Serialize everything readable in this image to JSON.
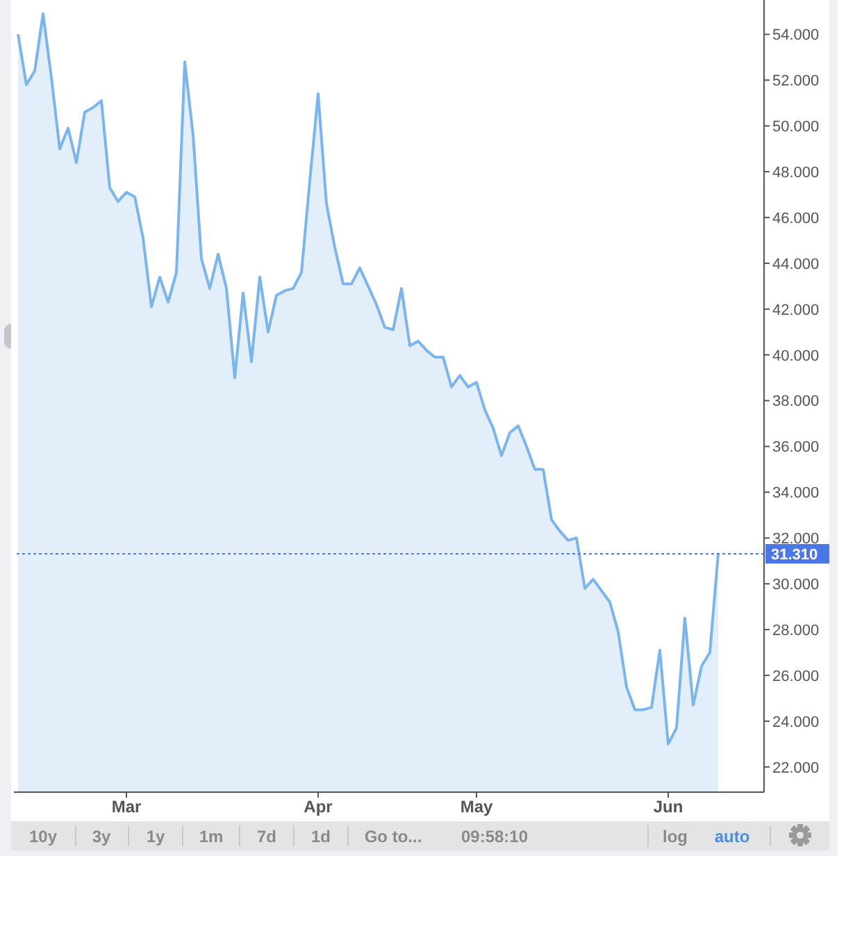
{
  "chart_data": {
    "type": "area",
    "categories": [
      null,
      null,
      null,
      null,
      null,
      null,
      null,
      null,
      null,
      null,
      null,
      null,
      null,
      "Mar",
      null,
      null,
      null,
      null,
      null,
      null,
      null,
      null,
      null,
      null,
      null,
      null,
      null,
      null,
      null,
      null,
      null,
      null,
      null,
      null,
      null,
      null,
      "Apr",
      null,
      null,
      null,
      null,
      null,
      null,
      null,
      null,
      null,
      null,
      null,
      null,
      null,
      null,
      null,
      null,
      null,
      null,
      "May",
      null,
      null,
      null,
      null,
      null,
      null,
      null,
      null,
      null,
      null,
      null,
      null,
      null,
      null,
      null,
      null,
      null,
      null,
      null,
      null,
      null,
      null,
      "Jun",
      null,
      null,
      null,
      null,
      null,
      null
    ],
    "series": [
      {
        "color": "#7cb5ec",
        "values": [
          54.0,
          51.8,
          52.4,
          54.9,
          52.1,
          49.0,
          49.9,
          48.4,
          50.6,
          50.8,
          51.1,
          47.3,
          46.7,
          47.1,
          46.9,
          45.1,
          42.1,
          43.4,
          42.3,
          43.6,
          52.8,
          49.6,
          44.2,
          42.9,
          44.4,
          42.9,
          39.0,
          42.7,
          39.7,
          43.4,
          41.0,
          42.6,
          42.8,
          42.9,
          43.6,
          47.6,
          51.4,
          46.6,
          44.7,
          43.1,
          43.1,
          43.8,
          43.0,
          42.2,
          41.2,
          41.1,
          42.9,
          40.4,
          40.6,
          40.2,
          39.9,
          39.9,
          38.6,
          39.1,
          38.6,
          38.8,
          37.6,
          36.8,
          35.6,
          36.6,
          36.9,
          36.0,
          35.0,
          35.0,
          32.8,
          32.3,
          31.9,
          32.0,
          29.8,
          30.2,
          29.7,
          29.2,
          27.9,
          25.5,
          24.5,
          24.5,
          24.6,
          27.1,
          23.0,
          23.7,
          28.5,
          24.7,
          26.4,
          27.0,
          31.31
        ]
      }
    ],
    "ylim": [
      20.9,
      55.5
    ],
    "yticks": [
      {
        "value": 22,
        "label": "22.000"
      },
      {
        "value": 24,
        "label": "24.000"
      },
      {
        "value": 26,
        "label": "26.000"
      },
      {
        "value": 28,
        "label": "28.000"
      },
      {
        "value": 30,
        "label": "30.000"
      },
      {
        "value": 32,
        "label": "32.000"
      },
      {
        "value": 34,
        "label": "34.000"
      },
      {
        "value": 36,
        "label": "36.000"
      },
      {
        "value": 38,
        "label": "38.000"
      },
      {
        "value": 40,
        "label": "40.000"
      },
      {
        "value": 42,
        "label": "42.000"
      },
      {
        "value": 44,
        "label": "44.000"
      },
      {
        "value": 46,
        "label": "46.000"
      },
      {
        "value": 48,
        "label": "48.000"
      },
      {
        "value": 50,
        "label": "50.000"
      },
      {
        "value": 52,
        "label": "52.000"
      },
      {
        "value": 54,
        "label": "54.000"
      }
    ],
    "ref_lines": [
      {
        "axis": "y",
        "value": 31.31,
        "label": "31.310",
        "color": "#4a76e6",
        "line_style": "dotted"
      }
    ],
    "annotations": [
      "10y",
      "3y",
      "1y",
      "1m",
      "7d",
      "1d",
      "Go to...",
      "09:58:10",
      "log",
      "auto"
    ]
  }
}
